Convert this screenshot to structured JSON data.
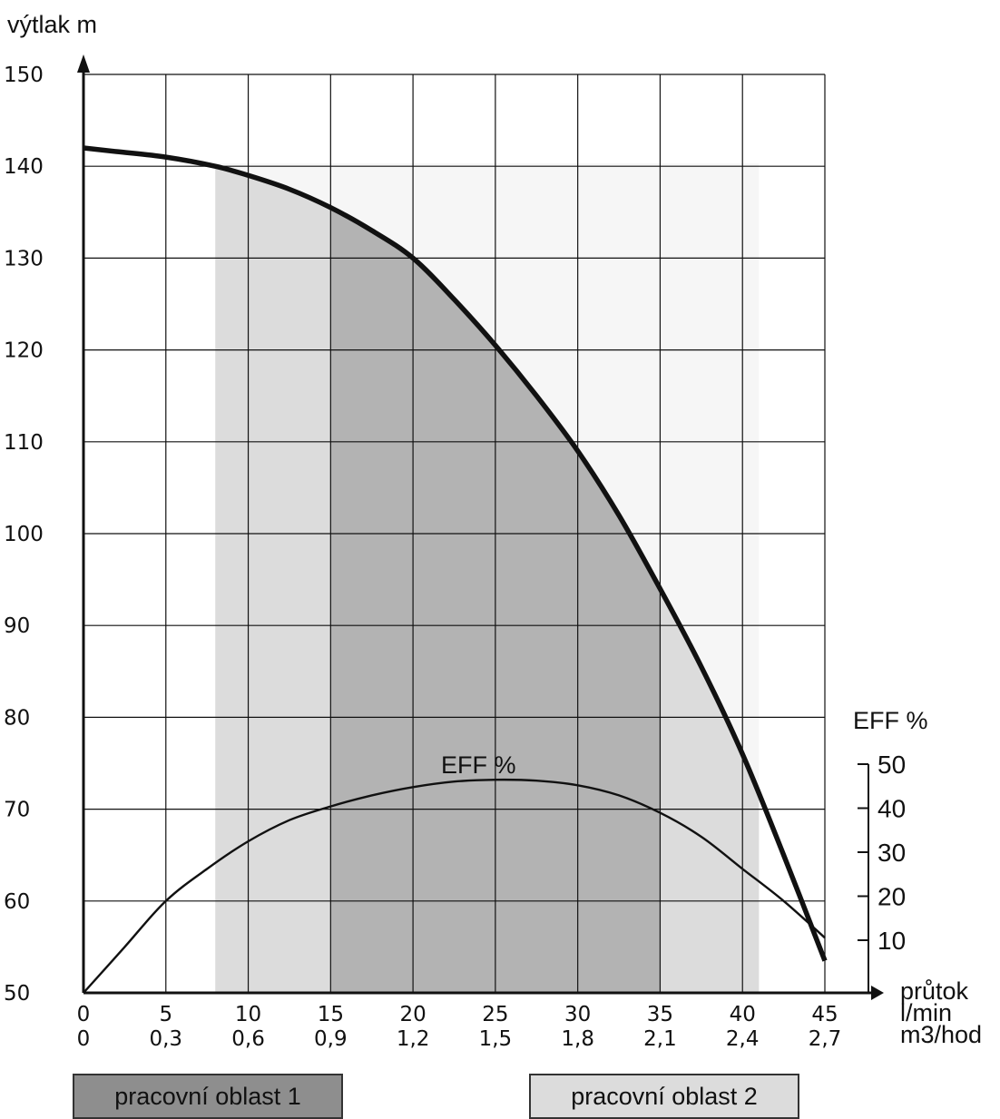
{
  "chart_data": {
    "type": "line",
    "y_axis_label": "výtlak  m",
    "y_ticks": [
      "150",
      "140",
      "130",
      "120",
      "110",
      "100",
      "90",
      "80",
      "70",
      "60",
      "50"
    ],
    "ylim": [
      50,
      150
    ],
    "x_axis_labels": [
      "průtok",
      "l/min",
      "m3/hod"
    ],
    "x_ticks_lmin": [
      "0",
      "5",
      "10",
      "15",
      "20",
      "25",
      "30",
      "35",
      "40",
      "45"
    ],
    "x_ticks_m3h": [
      "0",
      "0,3",
      "0,6",
      "0,9",
      "1,2",
      "1,5",
      "1,8",
      "2,1",
      "2,4",
      "2,7"
    ],
    "xlim": [
      0,
      45
    ],
    "grid": true,
    "eff_axis_label": "EFF %",
    "eff_ticks": [
      "50",
      "40",
      "30",
      "20",
      "10"
    ],
    "eff_curve_label": "EFF %",
    "series": [
      {
        "curve": "head",
        "x": [
          0,
          2,
          5,
          8,
          10,
          12.5,
          15,
          17.5,
          20,
          22.5,
          25,
          27.5,
          30,
          32.5,
          35,
          37.5,
          40,
          42.5,
          45
        ],
        "y": [
          142,
          141.6,
          141,
          140,
          139,
          137.5,
          135.5,
          133,
          130,
          125.5,
          120.5,
          115,
          109,
          102,
          94,
          85.5,
          76,
          65,
          53.5
        ]
      },
      {
        "curve": "efficiency",
        "x": [
          0,
          2.5,
          5,
          7.5,
          10,
          12.5,
          15,
          17.5,
          20,
          22.5,
          25,
          27.5,
          30,
          32.5,
          35,
          37.5,
          40,
          42.5,
          45
        ],
        "y": [
          50,
          55,
          60,
          63.5,
          66.5,
          68.8,
          70.3,
          71.5,
          72.4,
          73,
          73.2,
          73.1,
          72.6,
          71.5,
          69.6,
          67,
          63.5,
          60,
          56
        ]
      }
    ],
    "regions": [
      {
        "label": "pracovní oblast 2",
        "x_range": [
          8,
          41
        ],
        "y_top": 140.3,
        "color": "#dcdcdc"
      },
      {
        "label": "pracovní oblast 1",
        "x_range": [
          15,
          35
        ],
        "y_top": 140.3,
        "color": "#b3b3b3"
      }
    ]
  },
  "legend": {
    "area1": "pracovní oblast 1",
    "area2": "pracovní oblast 2"
  }
}
